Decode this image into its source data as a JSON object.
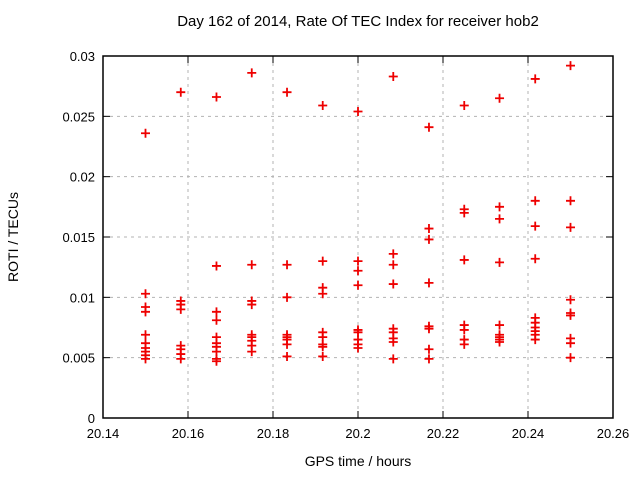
{
  "chart_data": {
    "type": "scatter",
    "title": "Day 162 of 2014, Rate Of TEC Index for receiver hob2",
    "xlabel": "GPS time / hours",
    "ylabel": "ROTI / TECUs",
    "xlim": [
      20.14,
      20.26
    ],
    "ylim": [
      0,
      0.03
    ],
    "grid": true,
    "legend": "none",
    "background": "#ffffff",
    "border_color": "#000000",
    "grid_color": "#b3b3b3",
    "xticks": {
      "values": [
        20.14,
        20.16,
        20.18,
        20.2,
        20.22,
        20.24,
        20.26
      ],
      "labels": [
        "20.14",
        "20.16",
        "20.18",
        "20.2",
        "20.22",
        "20.24",
        "20.26"
      ]
    },
    "yticks": {
      "values": [
        0,
        0.005,
        0.01,
        0.015,
        0.02,
        0.025,
        0.03
      ],
      "labels": [
        "0",
        "0.005",
        "0.01",
        "0.015",
        "0.02",
        "0.025",
        "0.03"
      ]
    },
    "series": [
      {
        "name": "roti",
        "marker": "plus",
        "color": "#ee0000",
        "points": [
          [
            20.15,
            0.0236
          ],
          [
            20.15,
            0.0103
          ],
          [
            20.15,
            0.0092
          ],
          [
            20.15,
            0.0088
          ],
          [
            20.15,
            0.0069
          ],
          [
            20.15,
            0.0062
          ],
          [
            20.15,
            0.0058
          ],
          [
            20.15,
            0.0055
          ],
          [
            20.15,
            0.0052
          ],
          [
            20.15,
            0.0049
          ],
          [
            20.1583,
            0.027
          ],
          [
            20.1583,
            0.0097
          ],
          [
            20.1583,
            0.0094
          ],
          [
            20.1583,
            0.009
          ],
          [
            20.1583,
            0.006
          ],
          [
            20.1583,
            0.0057
          ],
          [
            20.1583,
            0.0053
          ],
          [
            20.1583,
            0.0049
          ],
          [
            20.1667,
            0.0266
          ],
          [
            20.1667,
            0.0126
          ],
          [
            20.1667,
            0.0088
          ],
          [
            20.1667,
            0.0081
          ],
          [
            20.1667,
            0.0067
          ],
          [
            20.1667,
            0.0062
          ],
          [
            20.1667,
            0.0059
          ],
          [
            20.1667,
            0.0055
          ],
          [
            20.1667,
            0.0049
          ],
          [
            20.1667,
            0.0047
          ],
          [
            20.175,
            0.0286
          ],
          [
            20.175,
            0.0127
          ],
          [
            20.175,
            0.0097
          ],
          [
            20.175,
            0.0094
          ],
          [
            20.175,
            0.0069
          ],
          [
            20.175,
            0.0067
          ],
          [
            20.175,
            0.0064
          ],
          [
            20.175,
            0.006
          ],
          [
            20.175,
            0.0055
          ],
          [
            20.1833,
            0.027
          ],
          [
            20.1833,
            0.0127
          ],
          [
            20.1833,
            0.01
          ],
          [
            20.1833,
            0.0069
          ],
          [
            20.1833,
            0.0067
          ],
          [
            20.1833,
            0.0065
          ],
          [
            20.1833,
            0.0061
          ],
          [
            20.1833,
            0.0051
          ],
          [
            20.1917,
            0.0259
          ],
          [
            20.1917,
            0.013
          ],
          [
            20.1917,
            0.0108
          ],
          [
            20.1917,
            0.0103
          ],
          [
            20.1917,
            0.0071
          ],
          [
            20.1917,
            0.0067
          ],
          [
            20.1917,
            0.0061
          ],
          [
            20.1917,
            0.0059
          ],
          [
            20.1917,
            0.0051
          ],
          [
            20.2,
            0.0254
          ],
          [
            20.2,
            0.013
          ],
          [
            20.2,
            0.0122
          ],
          [
            20.2,
            0.011
          ],
          [
            20.2,
            0.0073
          ],
          [
            20.2,
            0.0071
          ],
          [
            20.2,
            0.0065
          ],
          [
            20.2,
            0.0061
          ],
          [
            20.2,
            0.0058
          ],
          [
            20.2083,
            0.0283
          ],
          [
            20.2083,
            0.0136
          ],
          [
            20.2083,
            0.0127
          ],
          [
            20.2083,
            0.0111
          ],
          [
            20.2083,
            0.0074
          ],
          [
            20.2083,
            0.0071
          ],
          [
            20.2083,
            0.0066
          ],
          [
            20.2083,
            0.0063
          ],
          [
            20.2083,
            0.0049
          ],
          [
            20.2167,
            0.0241
          ],
          [
            20.2167,
            0.0157
          ],
          [
            20.2167,
            0.0148
          ],
          [
            20.2167,
            0.0112
          ],
          [
            20.2167,
            0.0076
          ],
          [
            20.2167,
            0.0074
          ],
          [
            20.2167,
            0.0057
          ],
          [
            20.2167,
            0.0049
          ],
          [
            20.225,
            0.0259
          ],
          [
            20.225,
            0.0173
          ],
          [
            20.225,
            0.017
          ],
          [
            20.225,
            0.0131
          ],
          [
            20.225,
            0.0077
          ],
          [
            20.225,
            0.0073
          ],
          [
            20.225,
            0.0065
          ],
          [
            20.225,
            0.0061
          ],
          [
            20.2333,
            0.0265
          ],
          [
            20.2333,
            0.0175
          ],
          [
            20.2333,
            0.0165
          ],
          [
            20.2333,
            0.0129
          ],
          [
            20.2333,
            0.0077
          ],
          [
            20.2333,
            0.0069
          ],
          [
            20.2333,
            0.0067
          ],
          [
            20.2333,
            0.0065
          ],
          [
            20.2333,
            0.0063
          ],
          [
            20.2417,
            0.0281
          ],
          [
            20.2417,
            0.018
          ],
          [
            20.2417,
            0.0159
          ],
          [
            20.2417,
            0.0132
          ],
          [
            20.2417,
            0.0083
          ],
          [
            20.2417,
            0.0079
          ],
          [
            20.2417,
            0.0075
          ],
          [
            20.2417,
            0.0072
          ],
          [
            20.2417,
            0.0069
          ],
          [
            20.2417,
            0.0065
          ],
          [
            20.25,
            0.0292
          ],
          [
            20.25,
            0.018
          ],
          [
            20.25,
            0.0158
          ],
          [
            20.25,
            0.0098
          ],
          [
            20.25,
            0.0087
          ],
          [
            20.25,
            0.0085
          ],
          [
            20.25,
            0.0066
          ],
          [
            20.25,
            0.0062
          ],
          [
            20.25,
            0.005
          ]
        ]
      }
    ]
  }
}
